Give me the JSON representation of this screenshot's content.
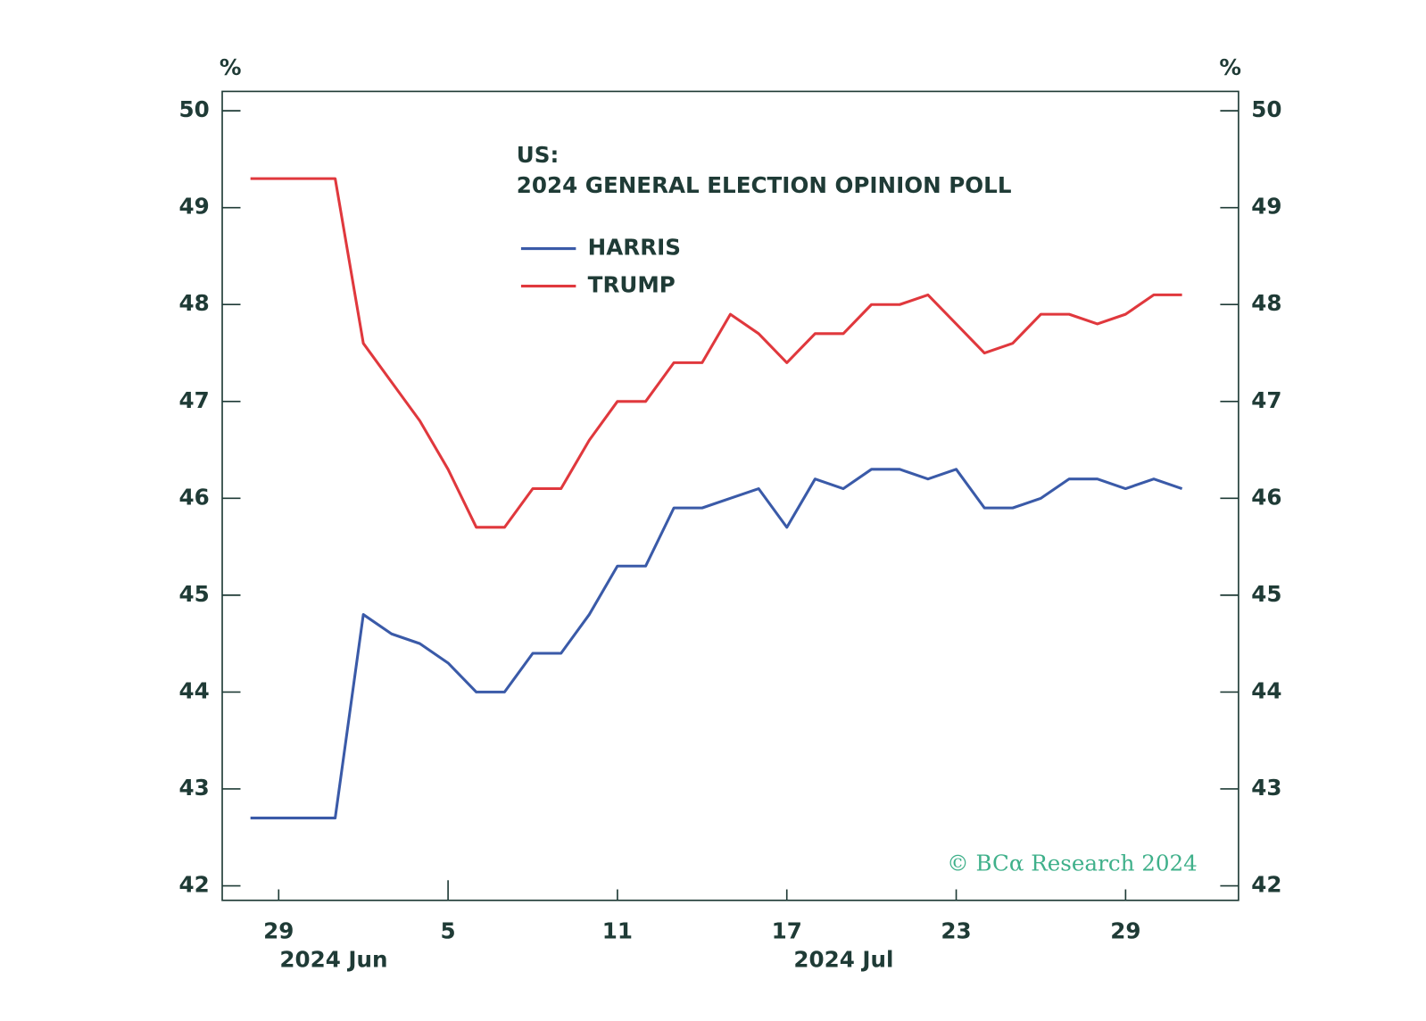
{
  "chart_data": {
    "type": "line",
    "title": "US:",
    "subtitle": "2024 GENERAL ELECTION OPINION POLL",
    "y_unit": "%",
    "y2_unit": "%",
    "watermark": "© BCα Research 2024",
    "x": [
      "2024-06-28",
      "2024-06-29",
      "2024-06-30",
      "2024-07-01",
      "2024-07-02",
      "2024-07-03",
      "2024-07-04",
      "2024-07-05",
      "2024-07-06",
      "2024-07-07",
      "2024-07-08",
      "2024-07-09",
      "2024-07-10",
      "2024-07-11",
      "2024-07-12",
      "2024-07-13",
      "2024-07-14",
      "2024-07-15",
      "2024-07-16",
      "2024-07-17",
      "2024-07-18",
      "2024-07-19",
      "2024-07-20",
      "2024-07-21",
      "2024-07-22",
      "2024-07-23",
      "2024-07-24",
      "2024-07-25",
      "2024-07-26",
      "2024-07-27",
      "2024-07-28",
      "2024-07-29",
      "2024-07-30",
      "2024-07-31"
    ],
    "series": [
      {
        "name": "HARRIS",
        "color": "#3a5aa8",
        "values": [
          42.7,
          42.7,
          42.7,
          42.7,
          44.8,
          44.6,
          44.5,
          44.3,
          44.0,
          44.0,
          44.4,
          44.4,
          44.8,
          45.3,
          45.3,
          45.9,
          45.9,
          46.0,
          46.1,
          45.7,
          46.2,
          46.1,
          46.3,
          46.3,
          46.2,
          46.3,
          45.9,
          45.9,
          46.0,
          46.2,
          46.2,
          46.1,
          46.2,
          46.1
        ]
      },
      {
        "name": "TRUMP",
        "color": "#e0383d",
        "values": [
          49.3,
          49.3,
          49.3,
          49.3,
          47.6,
          47.2,
          46.8,
          46.3,
          45.7,
          45.7,
          46.1,
          46.1,
          46.6,
          47.0,
          47.0,
          47.4,
          47.4,
          47.9,
          47.7,
          47.4,
          47.7,
          47.7,
          48.0,
          48.0,
          48.1,
          47.8,
          47.5,
          47.6,
          47.9,
          47.9,
          47.8,
          47.9,
          48.1,
          48.1
        ]
      }
    ],
    "xlim": [
      "2024-06-27",
      "2024-08-02"
    ],
    "xticks": [
      {
        "value": "2024-06-29",
        "label": "29"
      },
      {
        "value": "2024-07-05",
        "label": "5"
      },
      {
        "value": "2024-07-11",
        "label": "11"
      },
      {
        "value": "2024-07-17",
        "label": "17"
      },
      {
        "value": "2024-07-23",
        "label": "23"
      },
      {
        "value": "2024-07-29",
        "label": "29"
      }
    ],
    "x_group_labels": [
      "2024 Jun",
      "2024 Jul"
    ],
    "ylim": [
      41.85,
      50.2
    ],
    "yticks": [
      42,
      43,
      44,
      45,
      46,
      47,
      48,
      49,
      50
    ],
    "y2lim": [
      41.85,
      50.2
    ],
    "y2ticks": [
      42,
      43,
      44,
      45,
      46,
      47,
      48,
      49,
      50
    ],
    "legend": "upper center"
  }
}
